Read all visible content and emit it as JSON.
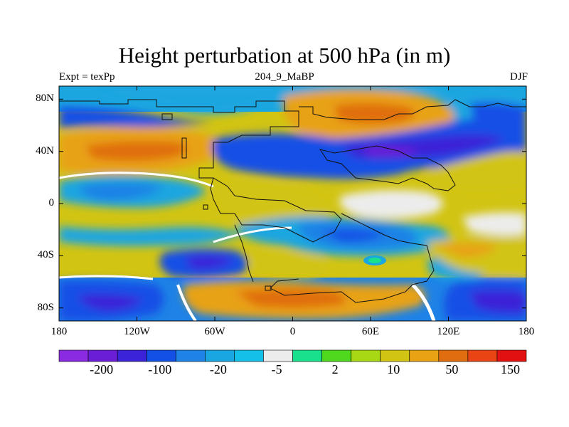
{
  "figure": {
    "title": "Height perturbation at 500 hPa (in m)",
    "subtitle_left": "Expt = texPp",
    "subtitle_center": "204_9_MaBP",
    "subtitle_right": "DJF"
  },
  "map": {
    "projection": "cylindrical-equidistant",
    "lon_range": [
      -180,
      180
    ],
    "lat_range": [
      -90,
      90
    ],
    "lat_ticks": [
      {
        "value": 80,
        "label": "80N"
      },
      {
        "value": 40,
        "label": "40N"
      },
      {
        "value": 0,
        "label": "0"
      },
      {
        "value": -40,
        "label": "40S"
      },
      {
        "value": -80,
        "label": "80S"
      }
    ],
    "lon_ticks": [
      {
        "value": -180,
        "label": "180"
      },
      {
        "value": -120,
        "label": "120W"
      },
      {
        "value": -60,
        "label": "60W"
      },
      {
        "value": 0,
        "label": "0"
      },
      {
        "value": 60,
        "label": "60E"
      },
      {
        "value": 120,
        "label": "120E"
      },
      {
        "value": 180,
        "label": "180"
      }
    ]
  },
  "colorbar": {
    "colors": [
      "#8a2be2",
      "#6a1fd6",
      "#3a23d8",
      "#1250e6",
      "#1e82e6",
      "#1aa6e0",
      "#14c0e8",
      "#ececec",
      "#18e08c",
      "#50d81e",
      "#a8d814",
      "#d2c412",
      "#e8a214",
      "#e06e10",
      "#e84414",
      "#e21010"
    ],
    "labels": [
      {
        "text": "-200",
        "after_box": 2
      },
      {
        "text": "-100",
        "after_box": 4
      },
      {
        "text": "-20",
        "after_box": 6
      },
      {
        "text": "-5",
        "after_box": 8
      },
      {
        "text": "2",
        "after_box": 10
      },
      {
        "text": "10",
        "after_box": 12
      },
      {
        "text": "50",
        "after_box": 14
      },
      {
        "text": "150",
        "after_box": 16
      }
    ]
  }
}
